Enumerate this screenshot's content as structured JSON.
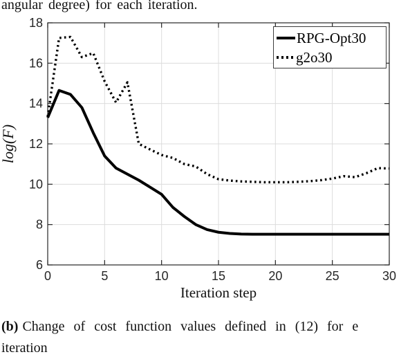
{
  "top_text": "angular degree) for each iteration.",
  "caption": {
    "prefix": "(b)",
    "line1": "Change of cost function values defined in (12) for e",
    "line2": "iteration"
  },
  "legend": {
    "entries": [
      {
        "label": "RPG-Opt30",
        "style": "solid"
      },
      {
        "label": "g2o30",
        "style": "dotted"
      }
    ]
  },
  "colors": {
    "axis": "#262626",
    "grid": "#dcdcdc",
    "line": "#000000",
    "tick_label": "#262626",
    "text": "#111111"
  },
  "chart_data": {
    "type": "line",
    "title": "",
    "xlabel": "Iteration step",
    "ylabel": "log(F)",
    "xlim": [
      0,
      30
    ],
    "ylim": [
      6,
      18
    ],
    "xticks": [
      0,
      5,
      10,
      15,
      20,
      25,
      30
    ],
    "yticks": [
      6,
      8,
      10,
      12,
      14,
      16,
      18
    ],
    "grid": true,
    "legend_position": "top-right",
    "x": [
      0,
      1,
      2,
      3,
      4,
      5,
      6,
      7,
      8,
      9,
      10,
      11,
      12,
      13,
      14,
      15,
      16,
      17,
      18,
      19,
      20,
      21,
      22,
      23,
      24,
      25,
      26,
      27,
      28,
      29,
      30
    ],
    "series": [
      {
        "name": "RPG-Opt30",
        "style": "solid",
        "color": "#000000",
        "values": [
          13.3,
          14.65,
          14.45,
          13.8,
          12.55,
          11.4,
          10.8,
          10.5,
          10.2,
          9.85,
          9.5,
          8.85,
          8.4,
          8.0,
          7.75,
          7.62,
          7.56,
          7.53,
          7.52,
          7.52,
          7.52,
          7.52,
          7.52,
          7.52,
          7.52,
          7.52,
          7.52,
          7.52,
          7.52,
          7.52,
          7.52
        ]
      },
      {
        "name": "g2o30",
        "style": "dotted",
        "color": "#000000",
        "values": [
          13.35,
          17.25,
          17.3,
          16.3,
          16.5,
          15.1,
          14.05,
          15.05,
          12.0,
          11.72,
          11.45,
          11.3,
          11.0,
          10.88,
          10.5,
          10.25,
          10.18,
          10.14,
          10.12,
          10.1,
          10.1,
          10.1,
          10.12,
          10.15,
          10.2,
          10.28,
          10.4,
          10.35,
          10.55,
          10.8,
          10.78
        ]
      }
    ]
  }
}
